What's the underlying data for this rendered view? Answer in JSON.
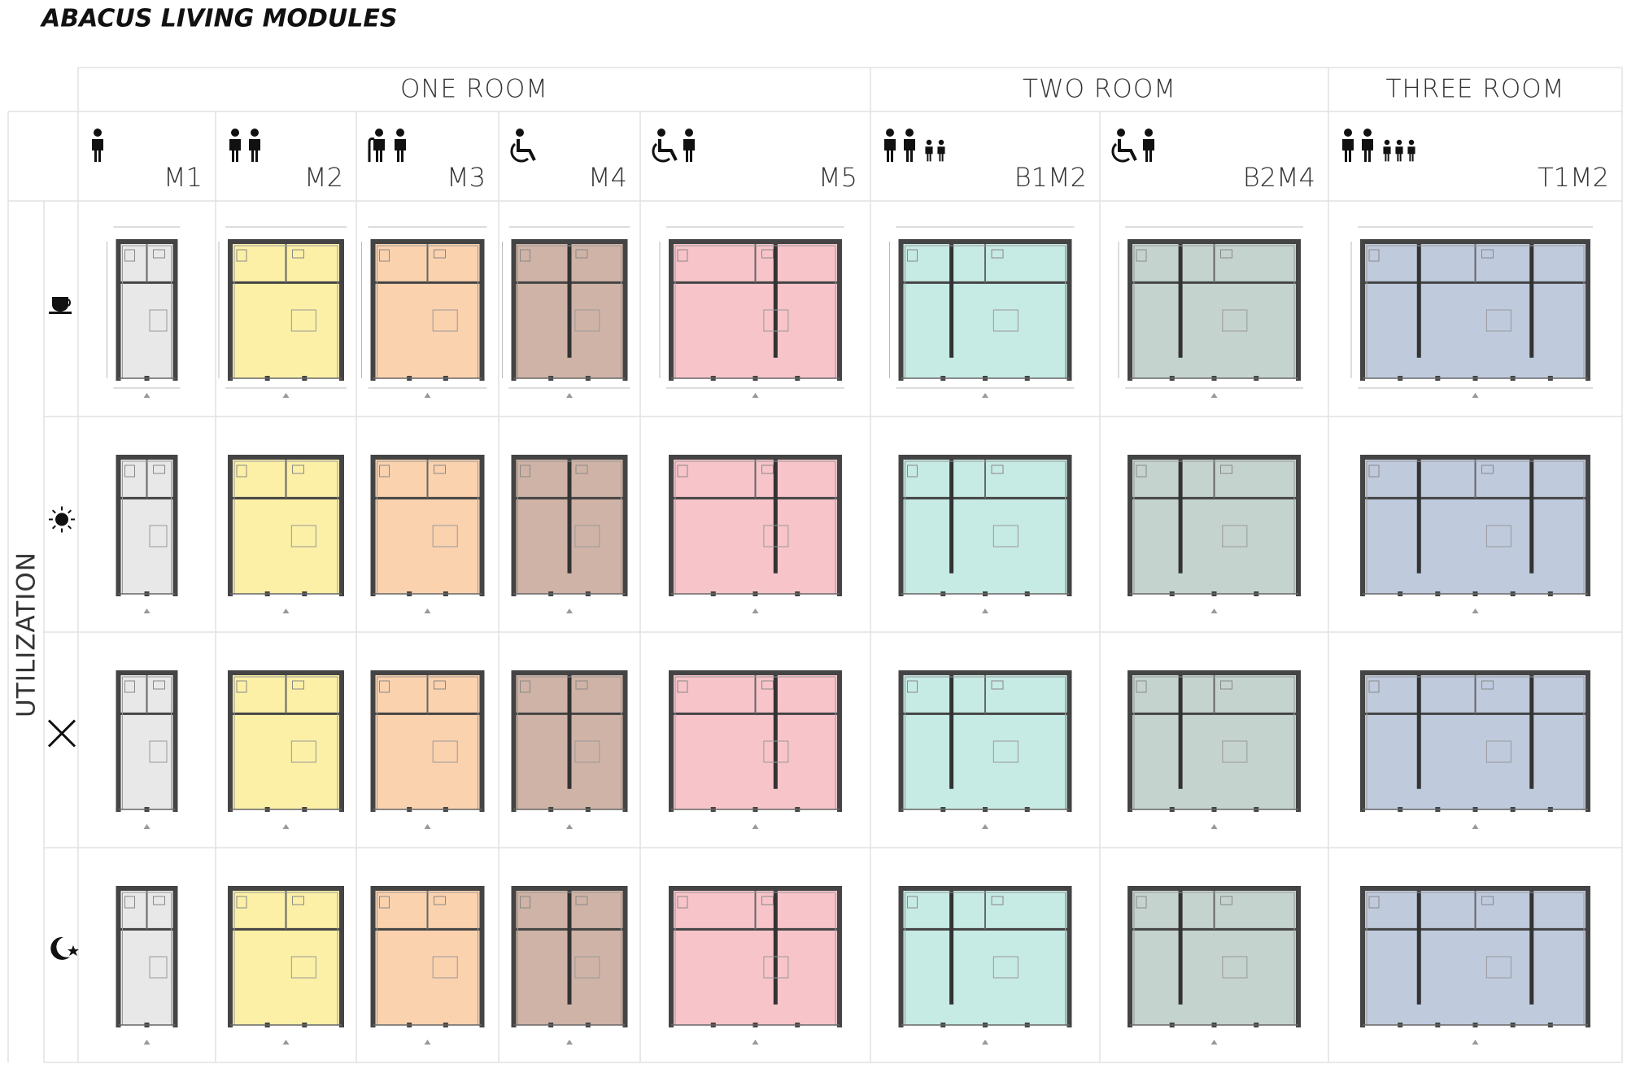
{
  "title": "ABACUS LIVING MODULES",
  "side_label": "UTILIZATION",
  "groups": [
    {
      "label": "ONE ROOM",
      "modules": [
        {
          "code": "M1",
          "color": "#e8e8e8"
        },
        {
          "code": "M2",
          "color": "#fbf0a6"
        },
        {
          "code": "M3",
          "color": "#fbd2ae"
        },
        {
          "code": "M4",
          "color": "#cfb3a6"
        },
        {
          "code": "M5",
          "color": "#f7c4ca"
        }
      ]
    },
    {
      "label": "TWO ROOM",
      "modules": [
        {
          "code": "B1M2",
          "color": "#c6eae4"
        },
        {
          "code": "B2M4",
          "color": "#c5d3ce"
        }
      ]
    },
    {
      "label": "THREE ROOM",
      "modules": [
        {
          "code": "T1M2",
          "color": "#c0cadd"
        }
      ]
    }
  ]
}
